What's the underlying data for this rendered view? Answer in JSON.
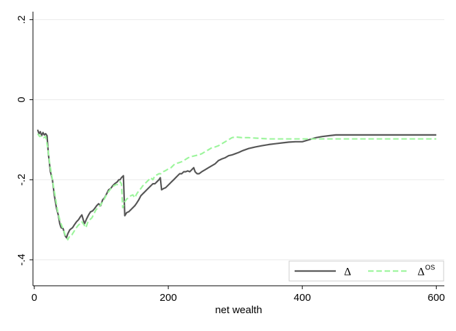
{
  "chart_data": {
    "type": "line",
    "title": "",
    "xlabel": "net wealth",
    "ylabel": "",
    "xlim": [
      -2,
      612
    ],
    "ylim": [
      -0.465,
      0.22
    ],
    "xticks": [
      0,
      200,
      400,
      600
    ],
    "xtick_labels": [
      "0",
      "200",
      "400",
      "600"
    ],
    "yticks": [
      -0.4,
      -0.2,
      0,
      0.2
    ],
    "ytick_labels": [
      "-.4",
      "-.2",
      "0",
      ".2"
    ],
    "grid": "horizontal",
    "legend_position": "bottom-right",
    "series": [
      {
        "name": "Δ",
        "color": "#555555",
        "style": "solid",
        "points": [
          [
            5,
            -0.075
          ],
          [
            7,
            -0.085
          ],
          [
            9,
            -0.08
          ],
          [
            11,
            -0.09
          ],
          [
            13,
            -0.082
          ],
          [
            15,
            -0.088
          ],
          [
            17,
            -0.085
          ],
          [
            19,
            -0.09
          ],
          [
            21,
            -0.135
          ],
          [
            24,
            -0.18
          ],
          [
            27,
            -0.2
          ],
          [
            30,
            -0.24
          ],
          [
            33,
            -0.27
          ],
          [
            36,
            -0.29
          ],
          [
            38,
            -0.31
          ],
          [
            40,
            -0.32
          ],
          [
            43,
            -0.322
          ],
          [
            46,
            -0.34
          ],
          [
            48,
            -0.345
          ],
          [
            50,
            -0.335
          ],
          [
            53,
            -0.325
          ],
          [
            57,
            -0.32
          ],
          [
            60,
            -0.312
          ],
          [
            63,
            -0.305
          ],
          [
            66,
            -0.3
          ],
          [
            69,
            -0.292
          ],
          [
            71,
            -0.288
          ],
          [
            73,
            -0.3
          ],
          [
            75,
            -0.31
          ],
          [
            78,
            -0.298
          ],
          [
            81,
            -0.288
          ],
          [
            84,
            -0.28
          ],
          [
            87,
            -0.278
          ],
          [
            90,
            -0.272
          ],
          [
            93,
            -0.265
          ],
          [
            96,
            -0.26
          ],
          [
            99,
            -0.265
          ],
          [
            102,
            -0.25
          ],
          [
            105,
            -0.245
          ],
          [
            108,
            -0.235
          ],
          [
            111,
            -0.225
          ],
          [
            114,
            -0.222
          ],
          [
            117,
            -0.215
          ],
          [
            120,
            -0.21
          ],
          [
            124,
            -0.205
          ],
          [
            126,
            -0.2
          ],
          [
            128,
            -0.2
          ],
          [
            130,
            -0.195
          ],
          [
            133,
            -0.19
          ],
          [
            135,
            -0.29
          ],
          [
            138,
            -0.282
          ],
          [
            141,
            -0.28
          ],
          [
            144,
            -0.275
          ],
          [
            147,
            -0.27
          ],
          [
            150,
            -0.265
          ],
          [
            153,
            -0.258
          ],
          [
            156,
            -0.25
          ],
          [
            159,
            -0.24
          ],
          [
            162,
            -0.235
          ],
          [
            165,
            -0.23
          ],
          [
            168,
            -0.225
          ],
          [
            171,
            -0.22
          ],
          [
            174,
            -0.215
          ],
          [
            177,
            -0.21
          ],
          [
            180,
            -0.21
          ],
          [
            183,
            -0.205
          ],
          [
            186,
            -0.2
          ],
          [
            188,
            -0.195
          ],
          [
            190,
            -0.225
          ],
          [
            193,
            -0.222
          ],
          [
            196,
            -0.22
          ],
          [
            199,
            -0.215
          ],
          [
            202,
            -0.21
          ],
          [
            205,
            -0.205
          ],
          [
            208,
            -0.2
          ],
          [
            211,
            -0.195
          ],
          [
            214,
            -0.19
          ],
          [
            217,
            -0.185
          ],
          [
            220,
            -0.185
          ],
          [
            223,
            -0.18
          ],
          [
            226,
            -0.18
          ],
          [
            229,
            -0.178
          ],
          [
            232,
            -0.18
          ],
          [
            235,
            -0.175
          ],
          [
            238,
            -0.17
          ],
          [
            240,
            -0.18
          ],
          [
            243,
            -0.185
          ],
          [
            246,
            -0.185
          ],
          [
            250,
            -0.18
          ],
          [
            255,
            -0.175
          ],
          [
            260,
            -0.17
          ],
          [
            265,
            -0.165
          ],
          [
            270,
            -0.16
          ],
          [
            275,
            -0.152
          ],
          [
            280,
            -0.148
          ],
          [
            285,
            -0.145
          ],
          [
            290,
            -0.14
          ],
          [
            295,
            -0.138
          ],
          [
            300,
            -0.135
          ],
          [
            305,
            -0.132
          ],
          [
            310,
            -0.128
          ],
          [
            320,
            -0.122
          ],
          [
            330,
            -0.118
          ],
          [
            340,
            -0.115
          ],
          [
            350,
            -0.112
          ],
          [
            360,
            -0.11
          ],
          [
            370,
            -0.108
          ],
          [
            380,
            -0.106
          ],
          [
            390,
            -0.105
          ],
          [
            400,
            -0.105
          ],
          [
            410,
            -0.1
          ],
          [
            420,
            -0.095
          ],
          [
            430,
            -0.092
          ],
          [
            440,
            -0.09
          ],
          [
            450,
            -0.088
          ],
          [
            600,
            -0.088
          ]
        ]
      },
      {
        "name": "Δ^OS",
        "color": "#9cf59c",
        "style": "dashed",
        "points": [
          [
            5,
            -0.085
          ],
          [
            8,
            -0.092
          ],
          [
            11,
            -0.09
          ],
          [
            14,
            -0.095
          ],
          [
            17,
            -0.092
          ],
          [
            20,
            -0.12
          ],
          [
            23,
            -0.16
          ],
          [
            26,
            -0.19
          ],
          [
            29,
            -0.22
          ],
          [
            32,
            -0.25
          ],
          [
            35,
            -0.28
          ],
          [
            38,
            -0.3
          ],
          [
            41,
            -0.315
          ],
          [
            44,
            -0.328
          ],
          [
            47,
            -0.342
          ],
          [
            50,
            -0.35
          ],
          [
            53,
            -0.34
          ],
          [
            56,
            -0.338
          ],
          [
            59,
            -0.33
          ],
          [
            62,
            -0.322
          ],
          [
            65,
            -0.315
          ],
          [
            68,
            -0.31
          ],
          [
            71,
            -0.305
          ],
          [
            74,
            -0.312
          ],
          [
            77,
            -0.32
          ],
          [
            80,
            -0.305
          ],
          [
            83,
            -0.3
          ],
          [
            86,
            -0.295
          ],
          [
            89,
            -0.285
          ],
          [
            92,
            -0.275
          ],
          [
            95,
            -0.27
          ],
          [
            98,
            -0.265
          ],
          [
            101,
            -0.258
          ],
          [
            104,
            -0.25
          ],
          [
            107,
            -0.24
          ],
          [
            110,
            -0.232
          ],
          [
            113,
            -0.225
          ],
          [
            116,
            -0.218
          ],
          [
            119,
            -0.215
          ],
          [
            122,
            -0.212
          ],
          [
            125,
            -0.212
          ],
          [
            128,
            -0.205
          ],
          [
            130,
            -0.21
          ],
          [
            132,
            -0.27
          ],
          [
            135,
            -0.255
          ],
          [
            138,
            -0.248
          ],
          [
            141,
            -0.245
          ],
          [
            144,
            -0.24
          ],
          [
            147,
            -0.238
          ],
          [
            150,
            -0.245
          ],
          [
            153,
            -0.235
          ],
          [
            156,
            -0.228
          ],
          [
            159,
            -0.222
          ],
          [
            162,
            -0.215
          ],
          [
            165,
            -0.21
          ],
          [
            168,
            -0.205
          ],
          [
            171,
            -0.2
          ],
          [
            174,
            -0.195
          ],
          [
            177,
            -0.2
          ],
          [
            180,
            -0.19
          ],
          [
            183,
            -0.188
          ],
          [
            186,
            -0.185
          ],
          [
            189,
            -0.185
          ],
          [
            192,
            -0.18
          ],
          [
            195,
            -0.178
          ],
          [
            198,
            -0.175
          ],
          [
            201,
            -0.172
          ],
          [
            204,
            -0.17
          ],
          [
            207,
            -0.165
          ],
          [
            210,
            -0.16
          ],
          [
            215,
            -0.158
          ],
          [
            220,
            -0.155
          ],
          [
            225,
            -0.15
          ],
          [
            230,
            -0.145
          ],
          [
            235,
            -0.142
          ],
          [
            240,
            -0.14
          ],
          [
            245,
            -0.138
          ],
          [
            250,
            -0.135
          ],
          [
            255,
            -0.13
          ],
          [
            260,
            -0.125
          ],
          [
            265,
            -0.12
          ],
          [
            270,
            -0.118
          ],
          [
            275,
            -0.115
          ],
          [
            280,
            -0.11
          ],
          [
            285,
            -0.105
          ],
          [
            290,
            -0.1
          ],
          [
            295,
            -0.095
          ],
          [
            300,
            -0.093
          ],
          [
            310,
            -0.095
          ],
          [
            320,
            -0.095
          ],
          [
            330,
            -0.096
          ],
          [
            340,
            -0.097
          ],
          [
            350,
            -0.098
          ],
          [
            360,
            -0.098
          ],
          [
            380,
            -0.098
          ],
          [
            400,
            -0.098
          ],
          [
            420,
            -0.098
          ],
          [
            450,
            -0.098
          ],
          [
            500,
            -0.098
          ],
          [
            550,
            -0.098
          ],
          [
            600,
            -0.098
          ]
        ]
      }
    ],
    "legend": {
      "entries": [
        {
          "text": "Δ",
          "superscript": ""
        },
        {
          "text": "Δ",
          "superscript": "OS"
        }
      ]
    }
  }
}
